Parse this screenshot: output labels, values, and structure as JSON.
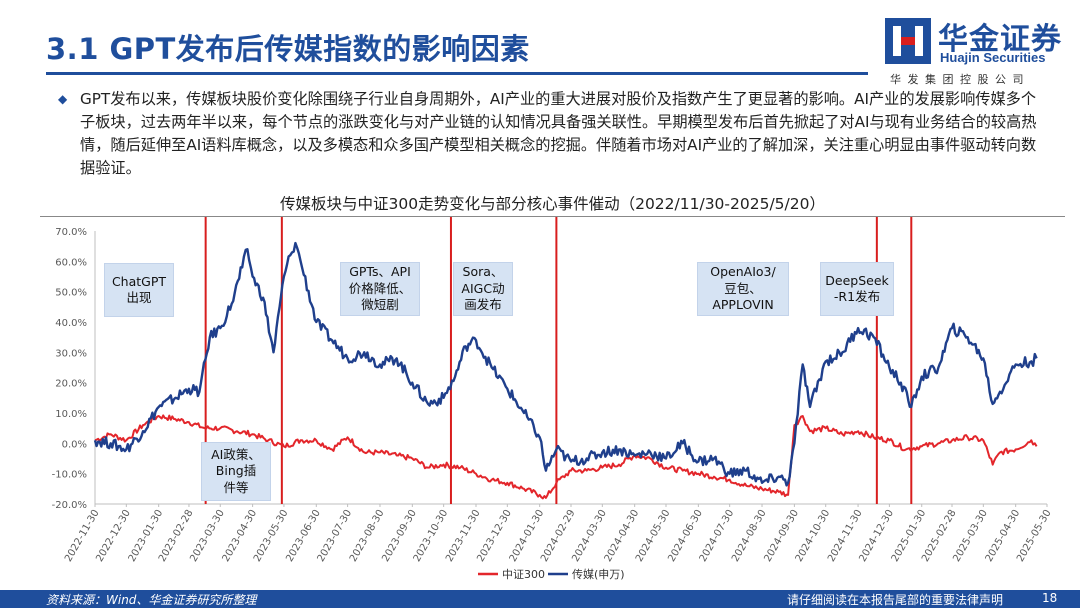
{
  "header": {
    "title": "3.1 GPT发布后传媒指数的影响因素",
    "logo_cn": "华金证券",
    "logo_en": "Huajin Securities",
    "logo_sub": "华发集团控股公司"
  },
  "bullet": {
    "icon": "diamond-bullet",
    "text": "GPT发布以来，传媒板块股价变化除围绕子行业自身周期外，AI产业的重大进展对股价及指数产生了更显著的影响。AI产业的发展影响传媒多个子板块，过去两年半以来，每个节点的涨跌变化与对产业链的认知情况具备强关联性。早期模型发布后首先掀起了对AI与现有业务结合的较高热情，随后延伸至AI语料库概念，以及多模态和众多国产模型相关概念的挖掘。伴随着市场对AI产业的了解加深，关注重心明显由事件驱动转向数据验证。"
  },
  "events": [
    {
      "text": "ChatGPT\n出现"
    },
    {
      "text": "AI政策、\nBing插\n件等"
    },
    {
      "text": "GPTs、API\n价格降低、\n微短剧"
    },
    {
      "text": "Sora、\nAIGC动\n画发布"
    },
    {
      "text": "OpenAIo3/\n豆包、\nAPPLOVIN"
    },
    {
      "text": "DeepSeek\n-R1发布"
    }
  ],
  "chart_data": {
    "type": "line",
    "title": "传媒板块与中证300走势变化与部分核心事件催动（2022/11/30-2025/5/20）",
    "ylim": [
      -20,
      70
    ],
    "yticks": [
      "-20.0%",
      "-10.0%",
      "0.0%",
      "10.0%",
      "20.0%",
      "30.0%",
      "40.0%",
      "50.0%",
      "60.0%",
      "70.0%"
    ],
    "xticks": [
      "2022-11-30",
      "2022-12-30",
      "2023-01-30",
      "2023-02-28",
      "2023-03-30",
      "2023-04-30",
      "2023-05-30",
      "2023-06-30",
      "2023-07-30",
      "2023-08-30",
      "2023-09-30",
      "2023-10-30",
      "2023-11-30",
      "2023-12-30",
      "2024-01-30",
      "2024-02-29",
      "2024-03-30",
      "2024-04-30",
      "2024-05-30",
      "2024-06-30",
      "2024-07-30",
      "2024-08-30",
      "2024-09-30",
      "2024-10-30",
      "2024-11-30",
      "2024-12-30",
      "2025-01-30",
      "2025-02-28",
      "2025-03-30",
      "2025-04-30",
      "2025-05-30"
    ],
    "event_dates": [
      "2023-03-16",
      "2023-05-28",
      "2023-11-06",
      "2024-02-15",
      "2024-12-18",
      "2025-01-20"
    ],
    "colors": {
      "csi300": "#e3262b",
      "media": "#1f3f8c",
      "event_line": "#d81e1e"
    },
    "series": [
      {
        "name": "中证300",
        "color": "#e3262b",
        "x": [
          "2022-11-30",
          "2022-12-15",
          "2022-12-30",
          "2023-01-15",
          "2023-01-30",
          "2023-02-15",
          "2023-02-28",
          "2023-03-15",
          "2023-03-30",
          "2023-04-15",
          "2023-04-30",
          "2023-05-15",
          "2023-05-30",
          "2023-06-15",
          "2023-06-30",
          "2023-07-15",
          "2023-07-30",
          "2023-08-15",
          "2023-08-30",
          "2023-09-15",
          "2023-09-30",
          "2023-10-15",
          "2023-10-30",
          "2023-11-15",
          "2023-11-30",
          "2023-12-15",
          "2023-12-30",
          "2024-01-15",
          "2024-01-30",
          "2024-02-05",
          "2024-02-15",
          "2024-02-29",
          "2024-03-15",
          "2024-03-30",
          "2024-04-15",
          "2024-04-30",
          "2024-05-15",
          "2024-05-30",
          "2024-06-15",
          "2024-06-30",
          "2024-07-15",
          "2024-07-30",
          "2024-08-15",
          "2024-08-30",
          "2024-09-15",
          "2024-09-24",
          "2024-09-30",
          "2024-10-08",
          "2024-10-15",
          "2024-10-30",
          "2024-11-15",
          "2024-11-30",
          "2024-12-15",
          "2024-12-30",
          "2025-01-15",
          "2025-01-30",
          "2025-02-15",
          "2025-02-28",
          "2025-03-15",
          "2025-03-30",
          "2025-04-08",
          "2025-04-15",
          "2025-04-30",
          "2025-05-15",
          "2025-05-20"
        ],
        "y": [
          1,
          3,
          1,
          6,
          9,
          8,
          7,
          5,
          5,
          4,
          3,
          1,
          -1,
          1,
          1,
          -2,
          2,
          -3,
          -3,
          -4,
          -5,
          -8,
          -7,
          -8,
          -10,
          -12,
          -13,
          -15,
          -17,
          -18,
          -13,
          -9,
          -9,
          -8,
          -7,
          -4,
          -5,
          -8,
          -9,
          -10,
          -11,
          -12,
          -14,
          -15,
          -16,
          -17,
          6,
          9,
          4,
          5,
          3,
          4,
          2,
          1,
          -2,
          -1,
          0,
          1,
          2,
          1,
          -7,
          -3,
          -2,
          1,
          -1
        ]
      },
      {
        "name": "传媒(申万)",
        "color": "#1f3f8c",
        "x": [
          "2022-11-30",
          "2022-12-15",
          "2022-12-30",
          "2023-01-15",
          "2023-01-30",
          "2023-02-15",
          "2023-02-28",
          "2023-03-10",
          "2023-03-20",
          "2023-03-30",
          "2023-04-10",
          "2023-04-20",
          "2023-04-25",
          "2023-04-30",
          "2023-05-10",
          "2023-05-20",
          "2023-05-30",
          "2023-06-05",
          "2023-06-10",
          "2023-06-15",
          "2023-06-30",
          "2023-07-15",
          "2023-07-30",
          "2023-08-15",
          "2023-08-30",
          "2023-09-15",
          "2023-09-30",
          "2023-10-15",
          "2023-10-30",
          "2023-11-10",
          "2023-11-20",
          "2023-11-30",
          "2023-12-15",
          "2023-12-30",
          "2024-01-15",
          "2024-01-30",
          "2024-02-05",
          "2024-02-15",
          "2024-02-29",
          "2024-03-15",
          "2024-03-30",
          "2024-04-15",
          "2024-04-30",
          "2024-05-15",
          "2024-05-30",
          "2024-06-15",
          "2024-06-30",
          "2024-07-15",
          "2024-07-30",
          "2024-08-15",
          "2024-08-30",
          "2024-09-15",
          "2024-09-24",
          "2024-09-30",
          "2024-10-08",
          "2024-10-15",
          "2024-10-30",
          "2024-11-15",
          "2024-11-30",
          "2024-12-15",
          "2024-12-30",
          "2025-01-10",
          "2025-01-20",
          "2025-01-30",
          "2025-02-15",
          "2025-02-28",
          "2025-03-15",
          "2025-03-30",
          "2025-04-08",
          "2025-04-15",
          "2025-04-30",
          "2025-05-15",
          "2025-05-20"
        ],
        "y": [
          1,
          0,
          -2,
          4,
          12,
          15,
          18,
          17,
          35,
          38,
          46,
          58,
          64,
          55,
          48,
          30,
          55,
          62,
          66,
          60,
          40,
          34,
          28,
          30,
          26,
          28,
          20,
          13,
          15,
          22,
          32,
          34,
          25,
          18,
          10,
          2,
          -9,
          -2,
          -6,
          -5,
          -3,
          -2,
          -4,
          -3,
          -5,
          0,
          -6,
          -5,
          -10,
          -9,
          -13,
          -11,
          -13,
          0,
          26,
          12,
          27,
          30,
          38,
          35,
          25,
          20,
          12,
          22,
          25,
          38,
          35,
          28,
          13,
          17,
          26,
          27,
          28
        ]
      }
    ]
  },
  "legend": {
    "csi300": "中证300",
    "media": "传媒(申万)"
  },
  "footer": {
    "source": "资料来源：Wind、华金证券研究所整理",
    "note": "请仔细阅读在本报告尾部的重要法律声明",
    "page": "18"
  }
}
